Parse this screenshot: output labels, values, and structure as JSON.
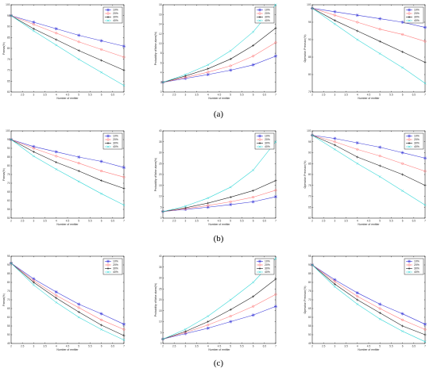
{
  "row_captions": [
    "(a)",
    "(b)",
    "(c)"
  ],
  "series_colors": [
    "#3b3bd9",
    "#ff7f7f",
    "#222222",
    "#38d8d8"
  ],
  "chart_data": [
    {
      "id": "a-left",
      "type": "line",
      "xlabel": "Number of emitter",
      "ylabel": "Fmeas(%)",
      "xlim": [
        2,
        7
      ],
      "ylim": [
        60,
        100
      ],
      "xticks": [
        "2",
        "2.5",
        "3",
        "3.5",
        "4",
        "4.5",
        "5",
        "5.5",
        "6",
        "6.5",
        "7"
      ],
      "yticks": [
        "60",
        "65",
        "70",
        "75",
        "80",
        "85",
        "90",
        "95",
        "100"
      ],
      "x": [
        2,
        3,
        4,
        5,
        6,
        7
      ],
      "series": [
        {
          "name": "10%",
          "values": [
            95,
            92,
            89,
            86,
            83.5,
            81
          ]
        },
        {
          "name": "20%",
          "values": [
            95,
            91,
            87,
            83,
            79.5,
            76
          ]
        },
        {
          "name": "30%",
          "values": [
            95,
            89,
            84,
            79,
            74.5,
            70
          ]
        },
        {
          "name": "40%",
          "values": [
            95,
            88,
            81.5,
            75,
            69,
            63
          ]
        }
      ]
    },
    {
      "id": "a-mid",
      "type": "line",
      "xlabel": "Number of emitter",
      "ylabel": "Probability of false alarm(%)",
      "xlim": [
        2,
        7
      ],
      "ylim": [
        0,
        18
      ],
      "xticks": [
        "2",
        "2.5",
        "3",
        "3.5",
        "4",
        "4.5",
        "5",
        "5.5",
        "6",
        "6.5",
        "7"
      ],
      "yticks": [
        "0",
        "2",
        "4",
        "6",
        "8",
        "10",
        "12",
        "14",
        "16",
        "18"
      ],
      "x": [
        2,
        3,
        4,
        5,
        6,
        7
      ],
      "series": [
        {
          "name": "10%",
          "values": [
            2.0,
            2.8,
            3.6,
            4.5,
            5.6,
            7.4
          ]
        },
        {
          "name": "20%",
          "values": [
            2.0,
            3.0,
            4.1,
            5.4,
            7.4,
            10.2
          ]
        },
        {
          "name": "30%",
          "values": [
            2.0,
            3.3,
            4.8,
            6.8,
            9.6,
            13.2
          ]
        },
        {
          "name": "40%",
          "values": [
            2.0,
            3.6,
            5.6,
            8.5,
            12.4,
            18
          ]
        }
      ]
    },
    {
      "id": "a-right",
      "type": "line",
      "xlabel": "Number of emitter",
      "ylabel": "Operation Precision(%)",
      "xlim": [
        2,
        7
      ],
      "ylim": [
        75,
        100
      ],
      "xticks": [
        "2",
        "2.5",
        "3",
        "3.5",
        "4",
        "4.5",
        "5",
        "5.5",
        "6",
        "6.5",
        "7"
      ],
      "yticks": [
        "75",
        "80",
        "85",
        "90",
        "95",
        "100"
      ],
      "x": [
        2,
        3,
        4,
        5,
        6,
        7
      ],
      "series": [
        {
          "name": "10%",
          "values": [
            99,
            98,
            97,
            96,
            95,
            93.5
          ]
        },
        {
          "name": "20%",
          "values": [
            99,
            97,
            95,
            93,
            91.5,
            89.5
          ]
        },
        {
          "name": "30%",
          "values": [
            99,
            95.5,
            92.5,
            89.5,
            86.5,
            83.5
          ]
        },
        {
          "name": "40%",
          "values": [
            99,
            94.5,
            90,
            86,
            82,
            77.5
          ]
        }
      ]
    },
    {
      "id": "b-left",
      "type": "line",
      "xlabel": "Number of emitter",
      "ylabel": "Fmeas(%)",
      "xlim": [
        2,
        7
      ],
      "ylim": [
        50,
        100
      ],
      "xticks": [
        "2",
        "2.5",
        "3",
        "3.5",
        "4",
        "4.5",
        "5",
        "5.5",
        "6",
        "6.5",
        "7"
      ],
      "yticks": [
        "50",
        "55",
        "60",
        "65",
        "70",
        "75",
        "80",
        "85",
        "90",
        "95",
        "100"
      ],
      "x": [
        2,
        3,
        4,
        5,
        6,
        7
      ],
      "series": [
        {
          "name": "10%",
          "values": [
            95,
            91,
            88,
            85,
            82.5,
            79
          ]
        },
        {
          "name": "20%",
          "values": [
            95,
            90,
            85.5,
            81.5,
            77,
            73.5
          ]
        },
        {
          "name": "30%",
          "values": [
            95,
            88,
            82,
            77,
            71.5,
            67
          ]
        },
        {
          "name": "40%",
          "values": [
            95,
            85.5,
            78,
            71,
            64,
            57.5
          ]
        }
      ]
    },
    {
      "id": "b-mid",
      "type": "line",
      "xlabel": "Number of emitter",
      "ylabel": "Probability of false alarm(%)",
      "xlim": [
        2,
        7
      ],
      "ylim": [
        0,
        40
      ],
      "xticks": [
        "2",
        "2.5",
        "3",
        "3.5",
        "4",
        "4.5",
        "5",
        "5.5",
        "6",
        "6.5",
        "7"
      ],
      "yticks": [
        "0",
        "5",
        "10",
        "15",
        "20",
        "25",
        "30",
        "35",
        "40"
      ],
      "x": [
        2,
        3,
        4,
        5,
        6,
        7
      ],
      "series": [
        {
          "name": "10%",
          "values": [
            3.0,
            4.0,
            5.0,
            6.2,
            7.5,
            9.8
          ]
        },
        {
          "name": "20%",
          "values": [
            3.0,
            4.3,
            5.8,
            7.5,
            9.6,
            12.8
          ]
        },
        {
          "name": "30%",
          "values": [
            3.0,
            4.7,
            6.9,
            9.6,
            12.6,
            17.2
          ]
        },
        {
          "name": "40%",
          "values": [
            3.0,
            5.5,
            9.2,
            14.2,
            22.0,
            35.0
          ]
        }
      ]
    },
    {
      "id": "b-right",
      "type": "line",
      "xlabel": "Number of emitter",
      "ylabel": "Operation Precision(%)",
      "xlim": [
        2,
        7
      ],
      "ylim": [
        60,
        100
      ],
      "xticks": [
        "2",
        "2.5",
        "3",
        "3.5",
        "4",
        "4.5",
        "5",
        "5.5",
        "6",
        "6.5",
        "7"
      ],
      "yticks": [
        "60",
        "65",
        "70",
        "75",
        "80",
        "85",
        "90",
        "95",
        "100"
      ],
      "x": [
        2,
        3,
        4,
        5,
        6,
        7
      ],
      "series": [
        {
          "name": "10%",
          "values": [
            98,
            96.5,
            94.5,
            92.5,
            90,
            87.5
          ]
        },
        {
          "name": "20%",
          "values": [
            98,
            95,
            91.5,
            88.5,
            85,
            81.5
          ]
        },
        {
          "name": "30%",
          "values": [
            98,
            93.5,
            88,
            84,
            80,
            75
          ]
        },
        {
          "name": "40%",
          "values": [
            98,
            91.5,
            85,
            79,
            72.5,
            66
          ]
        }
      ]
    },
    {
      "id": "c-left",
      "type": "line",
      "xlabel": "Number of emitter",
      "ylabel": "Fmeas(%)",
      "xlim": [
        2,
        7
      ],
      "ylim": [
        45,
        95
      ],
      "xticks": [
        "2",
        "2.5",
        "3",
        "3.5",
        "4",
        "4.5",
        "5",
        "5.5",
        "6",
        "6.5",
        "7"
      ],
      "yticks": [
        "45",
        "50",
        "55",
        "60",
        "65",
        "70",
        "75",
        "80",
        "85",
        "90",
        "95"
      ],
      "x": [
        2,
        3,
        4,
        5,
        6,
        7
      ],
      "series": [
        {
          "name": "10%",
          "values": [
            91,
            82,
            74.5,
            67.5,
            62,
            56
          ]
        },
        {
          "name": "20%",
          "values": [
            91,
            81,
            72.5,
            65.5,
            58.5,
            53
          ]
        },
        {
          "name": "30%",
          "values": [
            91,
            80,
            71,
            63,
            55.5,
            49.5
          ]
        },
        {
          "name": "40%",
          "values": [
            91,
            78.5,
            68.5,
            60,
            53,
            47
          ]
        }
      ]
    },
    {
      "id": "c-mid",
      "type": "line",
      "xlabel": "Number of emitter",
      "ylabel": "Probability of false alarm(%)",
      "xlim": [
        2,
        7
      ],
      "ylim": [
        0,
        40
      ],
      "xticks": [
        "2",
        "2.5",
        "3",
        "3.5",
        "4",
        "4.5",
        "5",
        "5.5",
        "6",
        "6.5",
        "7"
      ],
      "yticks": [
        "0",
        "5",
        "10",
        "15",
        "20",
        "25",
        "30",
        "35",
        "40"
      ],
      "x": [
        2,
        3,
        4,
        5,
        6,
        7
      ],
      "series": [
        {
          "name": "10%",
          "values": [
            2.0,
            4.5,
            7.0,
            10.0,
            13.0,
            17.0
          ]
        },
        {
          "name": "20%",
          "values": [
            2.0,
            5.0,
            8.5,
            12.5,
            17.0,
            22.5
          ]
        },
        {
          "name": "30%",
          "values": [
            2.0,
            5.5,
            10.0,
            15.5,
            21.5,
            29.5
          ]
        },
        {
          "name": "40%",
          "values": [
            2.0,
            6.5,
            12.5,
            20.0,
            28.0,
            39.0
          ]
        }
      ]
    },
    {
      "id": "c-right",
      "type": "line",
      "xlabel": "Number of emitter",
      "ylabel": "Operation Precision(%)",
      "xlim": [
        2,
        7
      ],
      "ylim": [
        45,
        95
      ],
      "xticks": [
        "2",
        "2.5",
        "3",
        "3.5",
        "4",
        "4.5",
        "5",
        "5.5",
        "6",
        "6.5",
        "7"
      ],
      "yticks": [
        "45",
        "50",
        "55",
        "60",
        "65",
        "70",
        "75",
        "80",
        "85",
        "90",
        "95"
      ],
      "x": [
        2,
        3,
        4,
        5,
        6,
        7
      ],
      "series": [
        {
          "name": "10%",
          "values": [
            90,
            81.5,
            74,
            67.5,
            62,
            56
          ]
        },
        {
          "name": "20%",
          "values": [
            90,
            80.5,
            72,
            65,
            58.5,
            53
          ]
        },
        {
          "name": "30%",
          "values": [
            90,
            79,
            70,
            62.5,
            55,
            50
          ]
        },
        {
          "name": "40%",
          "values": [
            90,
            77.5,
            67.5,
            59,
            52,
            46
          ]
        }
      ]
    }
  ]
}
